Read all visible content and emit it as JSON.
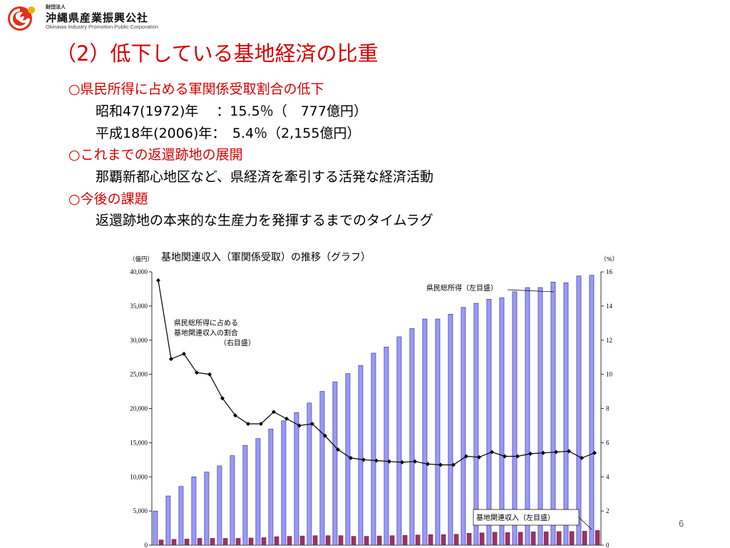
{
  "logo": {
    "small": "財団法人",
    "name": "沖縄県産業振興公社",
    "english": "Okinawa Industry Promotion Public Corporation"
  },
  "slide": {
    "title": "（2）低下している基地経済の比重",
    "lines": [
      {
        "text": "○県民所得に占める軍関係受取割合の低下",
        "style": "head"
      },
      {
        "text": "昭和47(1972)年　 ：15.5％（　777億円）",
        "style": "body"
      },
      {
        "text": "平成18年(2006)年：　5.4％（2,155億円）",
        "style": "body"
      },
      {
        "text": "○これまでの返還跡地の展開",
        "style": "head"
      },
      {
        "text": "那覇新都心地区など、県経済を牽引する活発な経済活動",
        "style": "body"
      },
      {
        "text": "○今後の課題",
        "style": "head"
      },
      {
        "text": "返還跡地の本来的な生産力を発揮するまでのタイムラグ",
        "style": "body"
      }
    ],
    "page_number": "6"
  },
  "colors": {
    "title_red": "#d60000",
    "income_bar": "#9999ff",
    "income_bar_stroke": "#2a2a70",
    "base_bar": "#993366",
    "line": "#000000"
  },
  "chart_data": {
    "type": "bar",
    "title": "基地関連収入（軍関係受取）の推移（グラフ）",
    "left_unit": "（億円）",
    "right_unit": "（%）",
    "ylim": [
      0,
      40000
    ],
    "y2lim": [
      0,
      16
    ],
    "left_ticks": [
      "0",
      "5,000",
      "10,000",
      "15,000",
      "20,000",
      "25,000",
      "30,000",
      "35,000",
      "40,000"
    ],
    "right_ticks": [
      "0",
      "2",
      "4",
      "6",
      "8",
      "10",
      "12",
      "14",
      "16"
    ],
    "grid": false,
    "series": [
      {
        "name": "県民総所得（左目盛）",
        "type": "bar",
        "axis": "left",
        "values": [
          5000,
          7200,
          8600,
          10000,
          10700,
          11600,
          13100,
          14600,
          15600,
          17000,
          18200,
          19400,
          20800,
          22500,
          23900,
          25100,
          26300,
          28100,
          29000,
          30500,
          31700,
          33100,
          33100,
          33800,
          34800,
          35400,
          36000,
          36200,
          37100,
          37700,
          37700,
          38500,
          38400,
          39400,
          39500
        ]
      },
      {
        "name": "基地関連収入（左目盛）",
        "type": "bar",
        "axis": "left",
        "values": [
          777,
          850,
          900,
          1000,
          1000,
          1000,
          1000,
          1050,
          1100,
          1250,
          1300,
          1350,
          1400,
          1400,
          1400,
          1300,
          1300,
          1350,
          1400,
          1450,
          1500,
          1550,
          1550,
          1600,
          1750,
          1800,
          1900,
          1850,
          1900,
          1950,
          1950,
          2000,
          2000,
          2050,
          2155
        ]
      },
      {
        "name": "県民総所得に占める基地関連収入の割合（右目盛）",
        "type": "line",
        "axis": "right",
        "values": [
          15.5,
          10.9,
          11.2,
          10.1,
          10.0,
          8.6,
          7.6,
          7.1,
          7.1,
          7.8,
          7.4,
          7.0,
          7.1,
          6.4,
          5.6,
          5.1,
          5.0,
          4.95,
          4.9,
          4.85,
          4.9,
          4.75,
          4.7,
          4.7,
          5.2,
          5.15,
          5.45,
          5.2,
          5.2,
          5.35,
          5.4,
          5.45,
          5.5,
          5.1,
          5.4
        ]
      }
    ],
    "annotations": {
      "income_label": "県民総所得（左目盛）",
      "ratio_label_lines": [
        "県民総所得に占める",
        "基地関連収入の割合",
        "（右目盛）"
      ],
      "base_label": "基地関連収入（左目盛）"
    }
  }
}
